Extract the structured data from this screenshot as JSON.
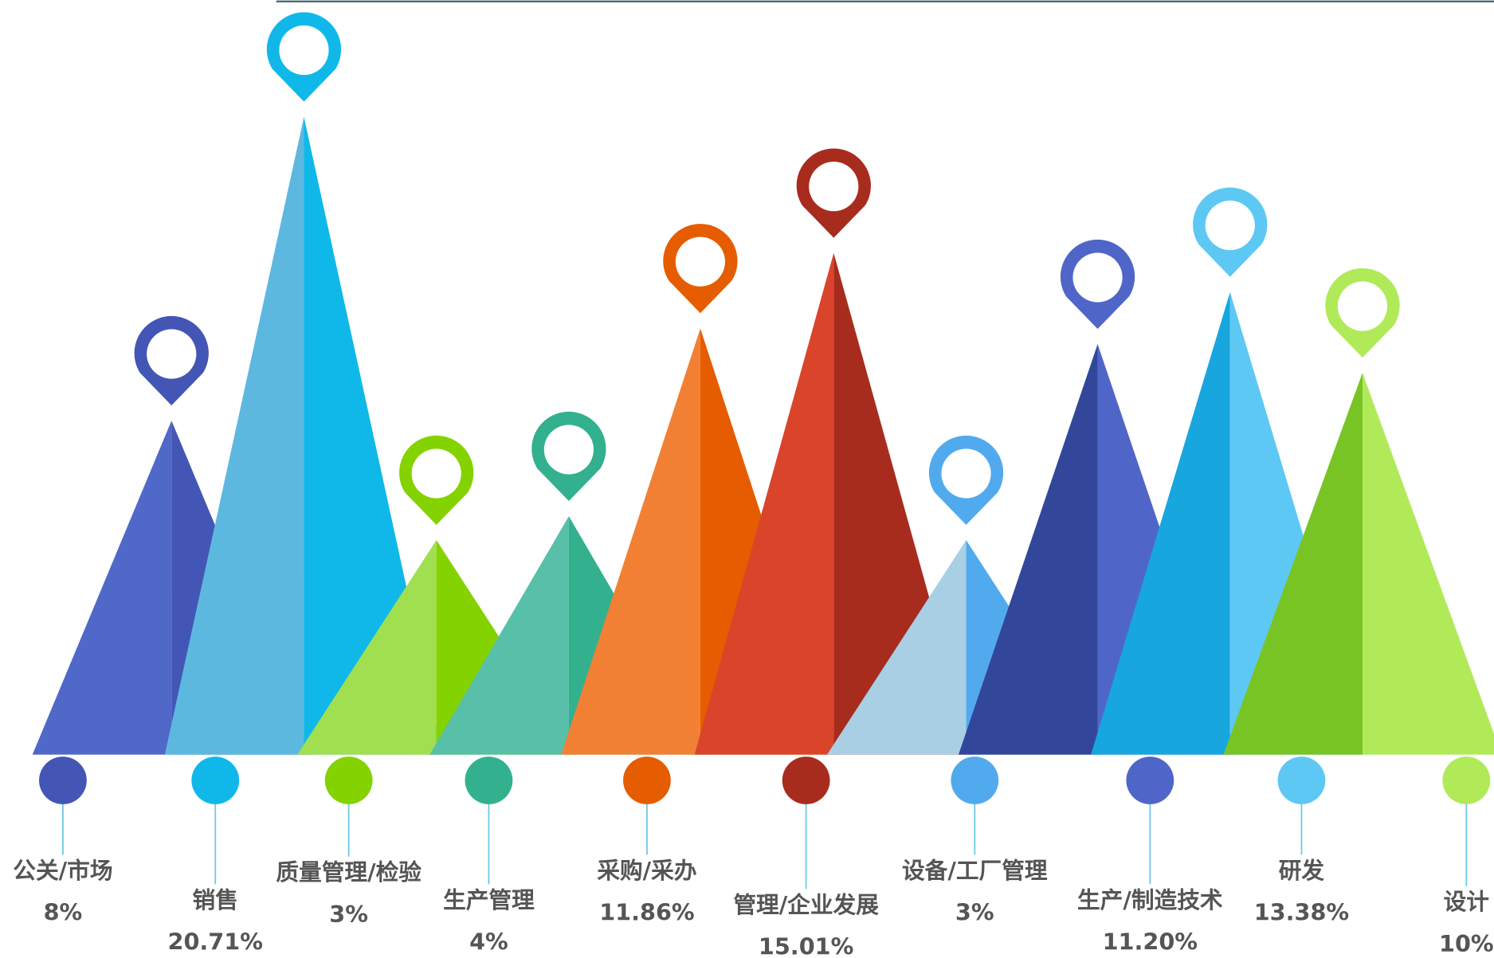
{
  "chart_data": {
    "type": "bar",
    "categories": [
      "公关/市场",
      "销售",
      "质量管理/检验",
      "生产管理",
      "采购/采办",
      "管理/企业发展",
      "设备/工厂管理",
      "生产/制造技术",
      "研发",
      "设计"
    ],
    "values": [
      8,
      20.71,
      3,
      4,
      11.86,
      15.01,
      3,
      11.2,
      13.38,
      10
    ],
    "value_labels": [
      "8%",
      "20.71%",
      "3%",
      "4%",
      "11.86%",
      "15.01%",
      "3%",
      "11.20%",
      "13.38%",
      "10%"
    ],
    "colors": [
      "#4356b5",
      "#10b8ea",
      "#84d200",
      "#33b08e",
      "#e65c00",
      "#a82c1e",
      "#52aaee",
      "#4f66c8",
      "#5ec8f4",
      "#b0ea58"
    ],
    "light_colors": [
      "#5068c8",
      "#5db8e0",
      "#a0e050",
      "#58bfa8",
      "#f28034",
      "#d9442a",
      "#a8cfe4",
      "#33479a",
      "#18a6de",
      "#78c424"
    ]
  }
}
